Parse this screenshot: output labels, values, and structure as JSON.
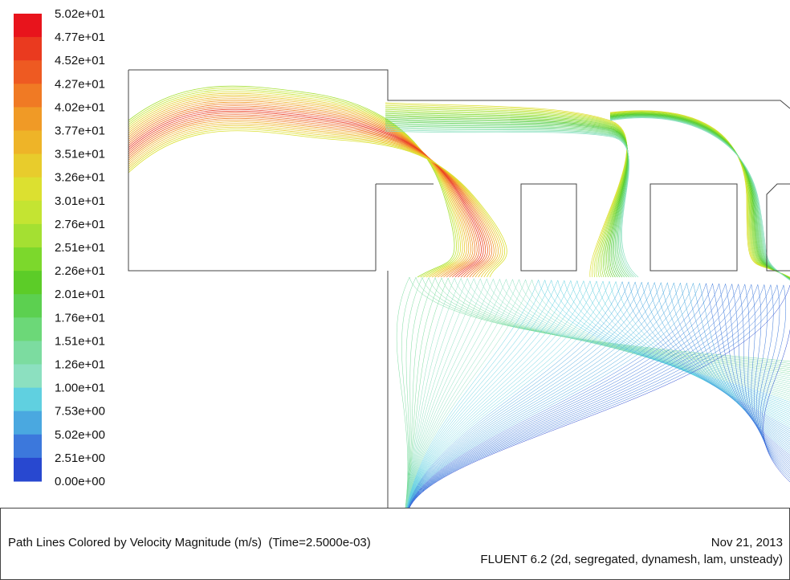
{
  "colorbar": {
    "labels": [
      "5.02e+01",
      "4.77e+01",
      "4.52e+01",
      "4.27e+01",
      "4.02e+01",
      "3.77e+01",
      "3.51e+01",
      "3.26e+01",
      "3.01e+01",
      "2.76e+01",
      "2.51e+01",
      "2.26e+01",
      "2.01e+01",
      "1.76e+01",
      "1.51e+01",
      "1.26e+01",
      "1.00e+01",
      "7.53e+00",
      "5.02e+00",
      "2.51e+00",
      "0.00e+00"
    ],
    "colors": [
      "#e8141c",
      "#ea3a1f",
      "#ee5a22",
      "#f07a24",
      "#f09a26",
      "#eeb428",
      "#e8cc2c",
      "#dce030",
      "#c4e432",
      "#a4e032",
      "#7cd82c",
      "#5ccc28",
      "#5cd050",
      "#6cd878",
      "#7cdca0",
      "#8ce0c0",
      "#60d0e0",
      "#4aa8e0",
      "#3c78dc",
      "#2848d0"
    ]
  },
  "footer": {
    "title": "Path Lines Colored by Velocity Magnitude (m/s)  (Time=2.5000e-03)",
    "date": "Nov 21, 2013",
    "solver": "FLUENT 6.2 (2d, segregated, dynamesh, lam, unsteady)"
  }
}
